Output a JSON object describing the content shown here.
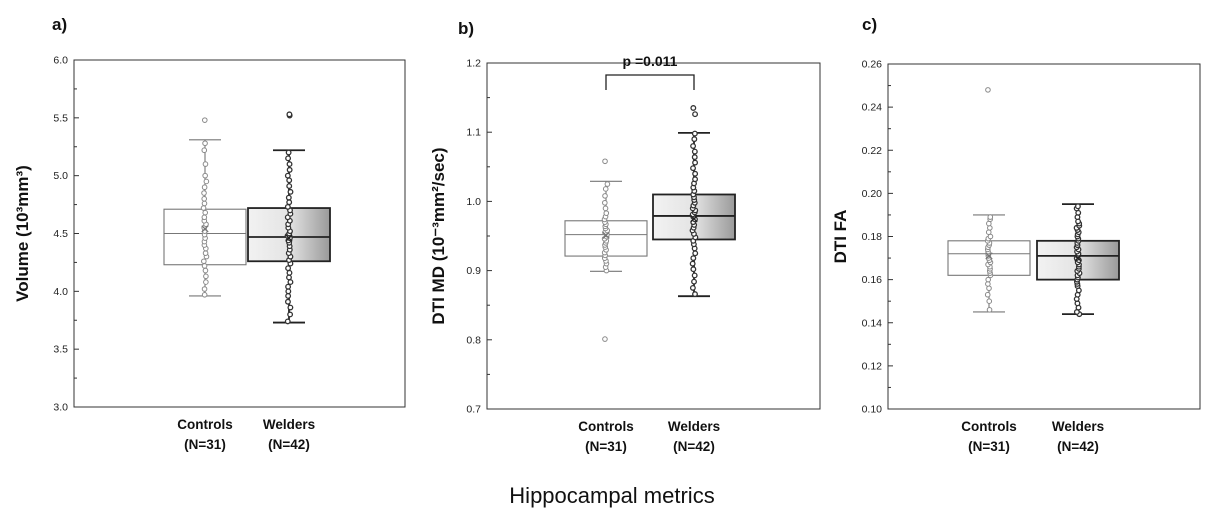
{
  "figure": {
    "xlabel": "Hippocampal metrics"
  },
  "chart_data": [
    {
      "type": "box",
      "panel_label": "a)",
      "ylabel": "Volume (10³mm³)",
      "ylim": [
        3.0,
        6.0
      ],
      "yticks": [
        "3.0",
        "3.5",
        "4.0",
        "4.5",
        "5.0",
        "5.5",
        "6.0"
      ],
      "groups": [
        {
          "label": "Controls",
          "n_label": "(N=31)",
          "min": 3.96,
          "q1": 4.23,
          "median": 4.5,
          "q3": 4.71,
          "max": 5.31,
          "mean": 4.54,
          "points": [
            3.97,
            4.02,
            4.08,
            4.13,
            4.18,
            4.22,
            4.26,
            4.3,
            4.33,
            4.37,
            4.4,
            4.43,
            4.46,
            4.49,
            4.52,
            4.55,
            4.58,
            4.61,
            4.64,
            4.68,
            4.72,
            4.76,
            4.8,
            4.85,
            4.9,
            4.95,
            5.0,
            5.1,
            5.22,
            5.28,
            5.48
          ]
        },
        {
          "label": "Welders",
          "n_label": "(N=42)",
          "min": 3.73,
          "q1": 4.26,
          "median": 4.47,
          "q3": 4.72,
          "max": 5.22,
          "mean": 4.46,
          "points": [
            3.74,
            3.8,
            3.86,
            3.91,
            3.96,
            4.0,
            4.04,
            4.08,
            4.12,
            4.16,
            4.2,
            4.24,
            4.27,
            4.3,
            4.33,
            4.36,
            4.39,
            4.42,
            4.44,
            4.46,
            4.48,
            4.5,
            4.52,
            4.55,
            4.58,
            4.61,
            4.64,
            4.67,
            4.7,
            4.73,
            4.77,
            4.81,
            4.86,
            4.91,
            4.96,
            5.0,
            5.05,
            5.1,
            5.15,
            5.2,
            5.52,
            5.53
          ]
        }
      ]
    },
    {
      "type": "box",
      "panel_label": "b)",
      "ylabel": "DTI MD (10⁻³mm²/sec)",
      "ylim": [
        0.7,
        1.2
      ],
      "yticks": [
        "0.7",
        "0.8",
        "0.9",
        "1.0",
        "1.1",
        "1.2"
      ],
      "annotation": "p =0.011",
      "groups": [
        {
          "label": "Controls",
          "n_label": "(N=31)",
          "min": 0.899,
          "q1": 0.921,
          "median": 0.952,
          "q3": 0.972,
          "max": 1.029,
          "mean": 0.951,
          "points": [
            0.801,
            0.9,
            0.905,
            0.91,
            0.914,
            0.918,
            0.922,
            0.926,
            0.93,
            0.934,
            0.937,
            0.94,
            0.943,
            0.946,
            0.949,
            0.952,
            0.955,
            0.958,
            0.961,
            0.964,
            0.967,
            0.97,
            0.974,
            0.978,
            0.983,
            0.99,
            0.998,
            1.008,
            1.018,
            1.025,
            1.058
          ]
        },
        {
          "label": "Welders",
          "n_label": "(N=42)",
          "min": 0.863,
          "q1": 0.945,
          "median": 0.979,
          "q3": 1.01,
          "max": 1.099,
          "mean": 0.975,
          "points": [
            0.866,
            0.875,
            0.884,
            0.893,
            0.902,
            0.91,
            0.918,
            0.925,
            0.932,
            0.938,
            0.943,
            0.948,
            0.953,
            0.958,
            0.962,
            0.966,
            0.97,
            0.974,
            0.978,
            0.981,
            0.984,
            0.987,
            0.99,
            0.994,
            0.998,
            1.002,
            1.006,
            1.01,
            1.015,
            1.02,
            1.026,
            1.032,
            1.04,
            1.048,
            1.056,
            1.064,
            1.072,
            1.08,
            1.09,
            1.098,
            1.126,
            1.135
          ]
        }
      ]
    },
    {
      "type": "box",
      "panel_label": "c)",
      "ylabel": "DTI FA",
      "ylim": [
        0.1,
        0.26
      ],
      "yticks": [
        "0.10",
        "0.12",
        "0.14",
        "0.16",
        "0.18",
        "0.20",
        "0.22",
        "0.24",
        "0.26"
      ],
      "groups": [
        {
          "label": "Controls",
          "n_label": "(N=31)",
          "min": 0.145,
          "q1": 0.162,
          "median": 0.172,
          "q3": 0.178,
          "max": 0.19,
          "mean": 0.171,
          "points": [
            0.146,
            0.15,
            0.153,
            0.156,
            0.158,
            0.16,
            0.162,
            0.163,
            0.164,
            0.165,
            0.166,
            0.167,
            0.168,
            0.169,
            0.17,
            0.171,
            0.172,
            0.173,
            0.174,
            0.175,
            0.176,
            0.177,
            0.178,
            0.179,
            0.18,
            0.182,
            0.184,
            0.186,
            0.188,
            0.189,
            0.248
          ]
        },
        {
          "label": "Welders",
          "n_label": "(N=42)",
          "min": 0.144,
          "q1": 0.16,
          "median": 0.171,
          "q3": 0.178,
          "max": 0.195,
          "mean": 0.17,
          "points": [
            0.144,
            0.145,
            0.147,
            0.149,
            0.151,
            0.153,
            0.155,
            0.157,
            0.158,
            0.159,
            0.16,
            0.161,
            0.162,
            0.163,
            0.164,
            0.165,
            0.166,
            0.167,
            0.168,
            0.169,
            0.17,
            0.171,
            0.172,
            0.173,
            0.174,
            0.175,
            0.176,
            0.177,
            0.178,
            0.179,
            0.18,
            0.181,
            0.182,
            0.183,
            0.184,
            0.185,
            0.186,
            0.187,
            0.189,
            0.191,
            0.193,
            0.194
          ]
        }
      ]
    }
  ]
}
